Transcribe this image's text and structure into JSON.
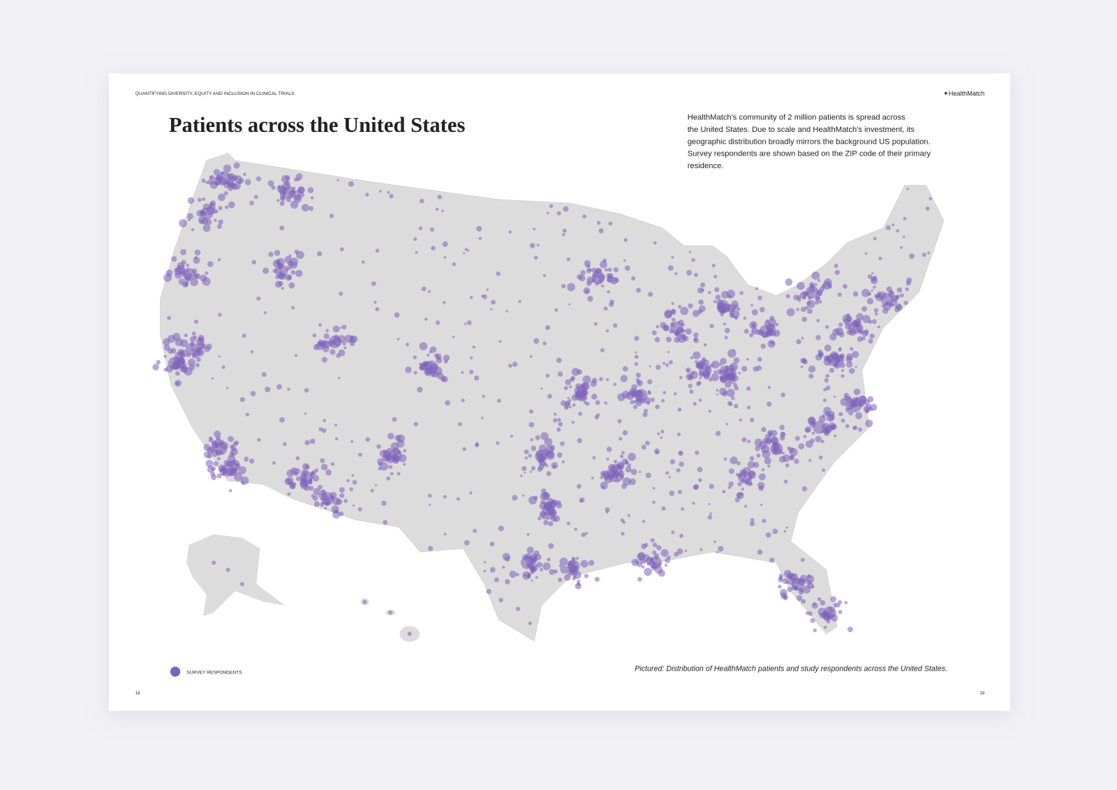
{
  "header": {
    "running_title": "QUANTIFYING DIVERSITY, EQUITY AND INCLUSION IN CLINICAL TRIALS",
    "logo": "✦HealthMatch"
  },
  "title": "Patients across the United States",
  "body": {
    "lines": [
      "HealthMatch's community of 2 million patients  is spread across",
      "the United States. Due to scale and HealthMatch's investment, its",
      "geographic distribution broadly mirrors the background US population.",
      "Survey respondents are shown based on the ZIP code of their primary",
      "residence."
    ]
  },
  "legend": {
    "label": "SURVEY RESPONDENTS"
  },
  "caption": "Pictured: Distribution of HealthMatch patients and study respondents across the United States.",
  "page_numbers": {
    "left": "18",
    "right": "19"
  }
}
